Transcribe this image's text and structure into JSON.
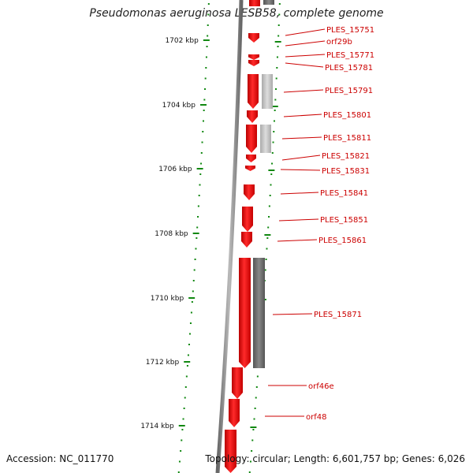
{
  "header": {
    "title": "Pseudomonas aeruginosa LESB58, complete genome"
  },
  "footer": {
    "accession": "Accession: NC_011770",
    "summary": "Topology: circular; Length: 6,601,757 bp; Genes: 6,026"
  },
  "colors": {
    "gene_forward": "#ee0000",
    "gene_other": "#777777",
    "backbone": "#888888",
    "tick": "#118811",
    "label": "#cc0000"
  },
  "axis": {
    "unit": "kbp",
    "ticks": [
      1702,
      1704,
      1706,
      1708,
      1710,
      1712,
      1714
    ],
    "tick_labels": [
      "1702 kbp",
      "1704 kbp",
      "1706 kbp",
      "1708 kbp",
      "1710 kbp",
      "1712 kbp",
      "1714 kbp"
    ]
  },
  "genes": [
    {
      "label": "PLES_15751"
    },
    {
      "label": "orf29b"
    },
    {
      "label": "PLES_15771"
    },
    {
      "label": "PLES_15781"
    },
    {
      "label": "PLES_15791"
    },
    {
      "label": "PLES_15801"
    },
    {
      "label": "PLES_15811"
    },
    {
      "label": "PLES_15821"
    },
    {
      "label": "PLES_15831"
    },
    {
      "label": "PLES_15841"
    },
    {
      "label": "PLES_15851"
    },
    {
      "label": "PLES_15861"
    },
    {
      "label": "PLES_15871"
    },
    {
      "label": "orf46e"
    },
    {
      "label": "orf48"
    }
  ]
}
